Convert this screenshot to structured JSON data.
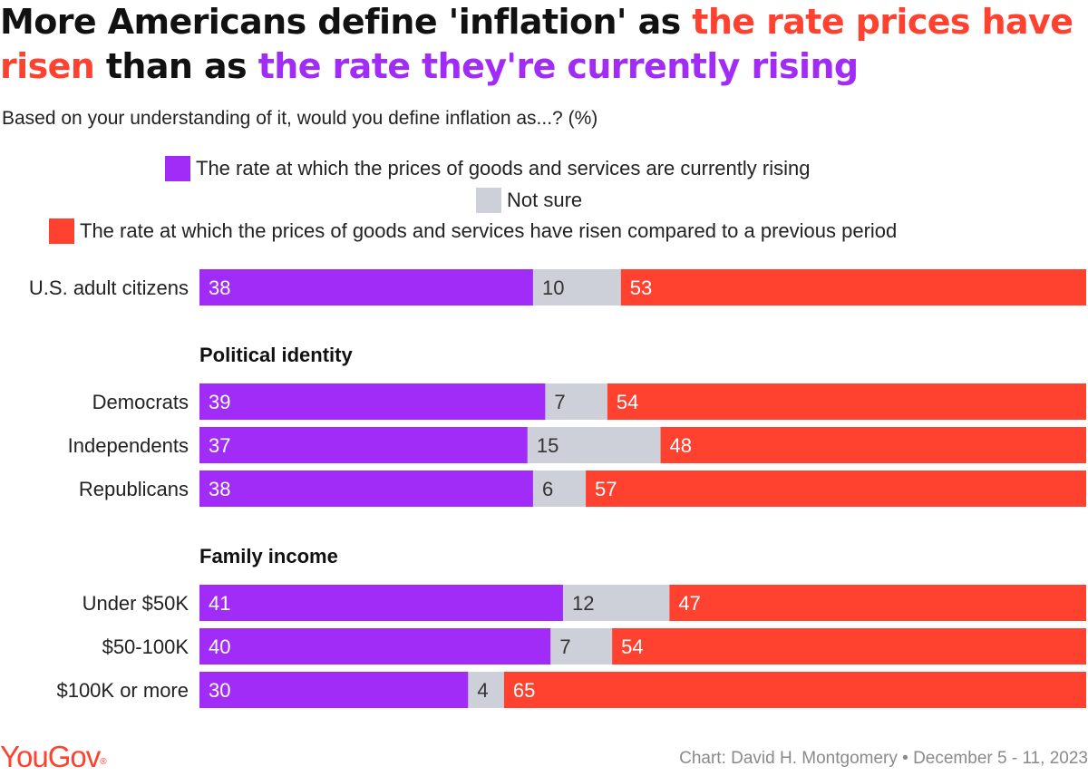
{
  "title": {
    "part1": "More Americans define 'inflation' as ",
    "part2": "the rate prices have risen",
    "part3": " than as ",
    "part4": "the rate they're currently rising"
  },
  "subtitle": "Based on your understanding of it, would you define inflation as...? (%)",
  "legend": [
    {
      "label": "The rate at which the prices of goods and services are currently rising",
      "color": "#a22cf7"
    },
    {
      "label": "Not sure",
      "color": "#cdd0d8"
    },
    {
      "label": "The rate at which the prices of goods and services have risen compared to a previous period",
      "color": "#ff4230"
    }
  ],
  "chart_data": {
    "type": "bar",
    "orientation": "horizontal",
    "stacked": true,
    "unit": "%",
    "series": [
      {
        "name": "The rate at which the prices of goods and services are currently rising",
        "color": "#a22cf7",
        "values": [
          38,
          39,
          37,
          38,
          41,
          40,
          30
        ]
      },
      {
        "name": "Not sure",
        "color": "#cdd0d8",
        "values": [
          10,
          7,
          15,
          6,
          12,
          7,
          4
        ]
      },
      {
        "name": "The rate at which the prices of goods and services have risen compared to a previous period",
        "color": "#ff4230",
        "values": [
          53,
          54,
          48,
          57,
          47,
          54,
          65
        ]
      }
    ],
    "groups": [
      {
        "heading": "",
        "categories": [
          "U.S. adult citizens"
        ]
      },
      {
        "heading": "Political identity",
        "categories": [
          "Democrats",
          "Independents",
          "Republicans"
        ]
      },
      {
        "heading": "Family income",
        "categories": [
          "Under $50K",
          "$50-100K",
          "$100K or more"
        ]
      }
    ],
    "categories": [
      "U.S. adult citizens",
      "Democrats",
      "Independents",
      "Republicans",
      "Under $50K",
      "$50-100K",
      "$100K or more"
    ]
  },
  "footer": {
    "logo": "YouGov",
    "logo_mark": "®",
    "credit": "Chart: David H. Montgomery • December 5 - 11, 2023"
  }
}
